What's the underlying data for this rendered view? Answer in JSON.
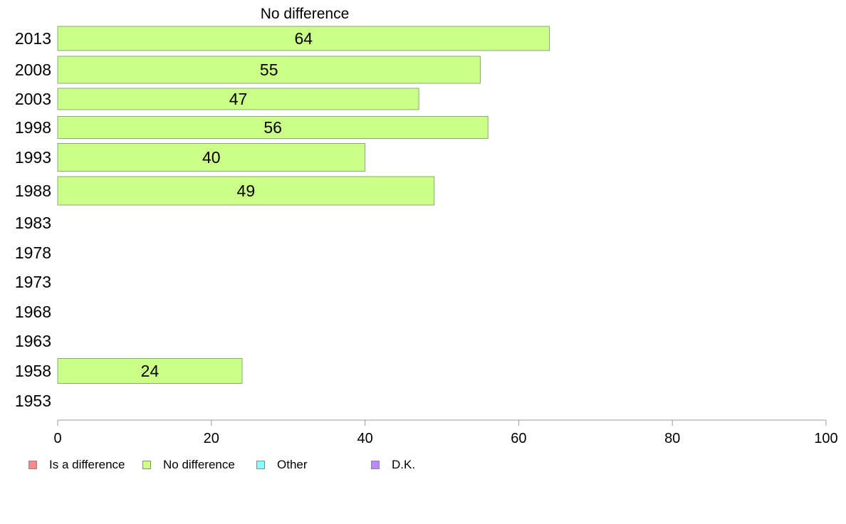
{
  "chart_data": {
    "type": "bar",
    "orientation": "horizontal",
    "title": "No difference",
    "categories": [
      "2013",
      "2008",
      "2003",
      "1998",
      "1993",
      "1988",
      "1983",
      "1978",
      "1973",
      "1968",
      "1963",
      "1958",
      "1953"
    ],
    "series": [
      {
        "name": "No difference",
        "color": "#ccff88",
        "values": [
          64,
          55,
          47,
          56,
          40,
          49,
          null,
          null,
          null,
          null,
          null,
          24,
          null
        ]
      }
    ],
    "xlim": [
      0,
      100
    ],
    "xticks": [
      "0",
      "20",
      "40",
      "60",
      "80",
      "100"
    ],
    "grid": false,
    "legend_position": "bottom-left",
    "legend": [
      {
        "label": "Is a difference",
        "color": "#ff8888"
      },
      {
        "label": "No difference",
        "color": "#ccff88"
      },
      {
        "label": "Other",
        "color": "#88ffff"
      },
      {
        "label": "D.K.",
        "color": "#bb88ff"
      }
    ]
  }
}
